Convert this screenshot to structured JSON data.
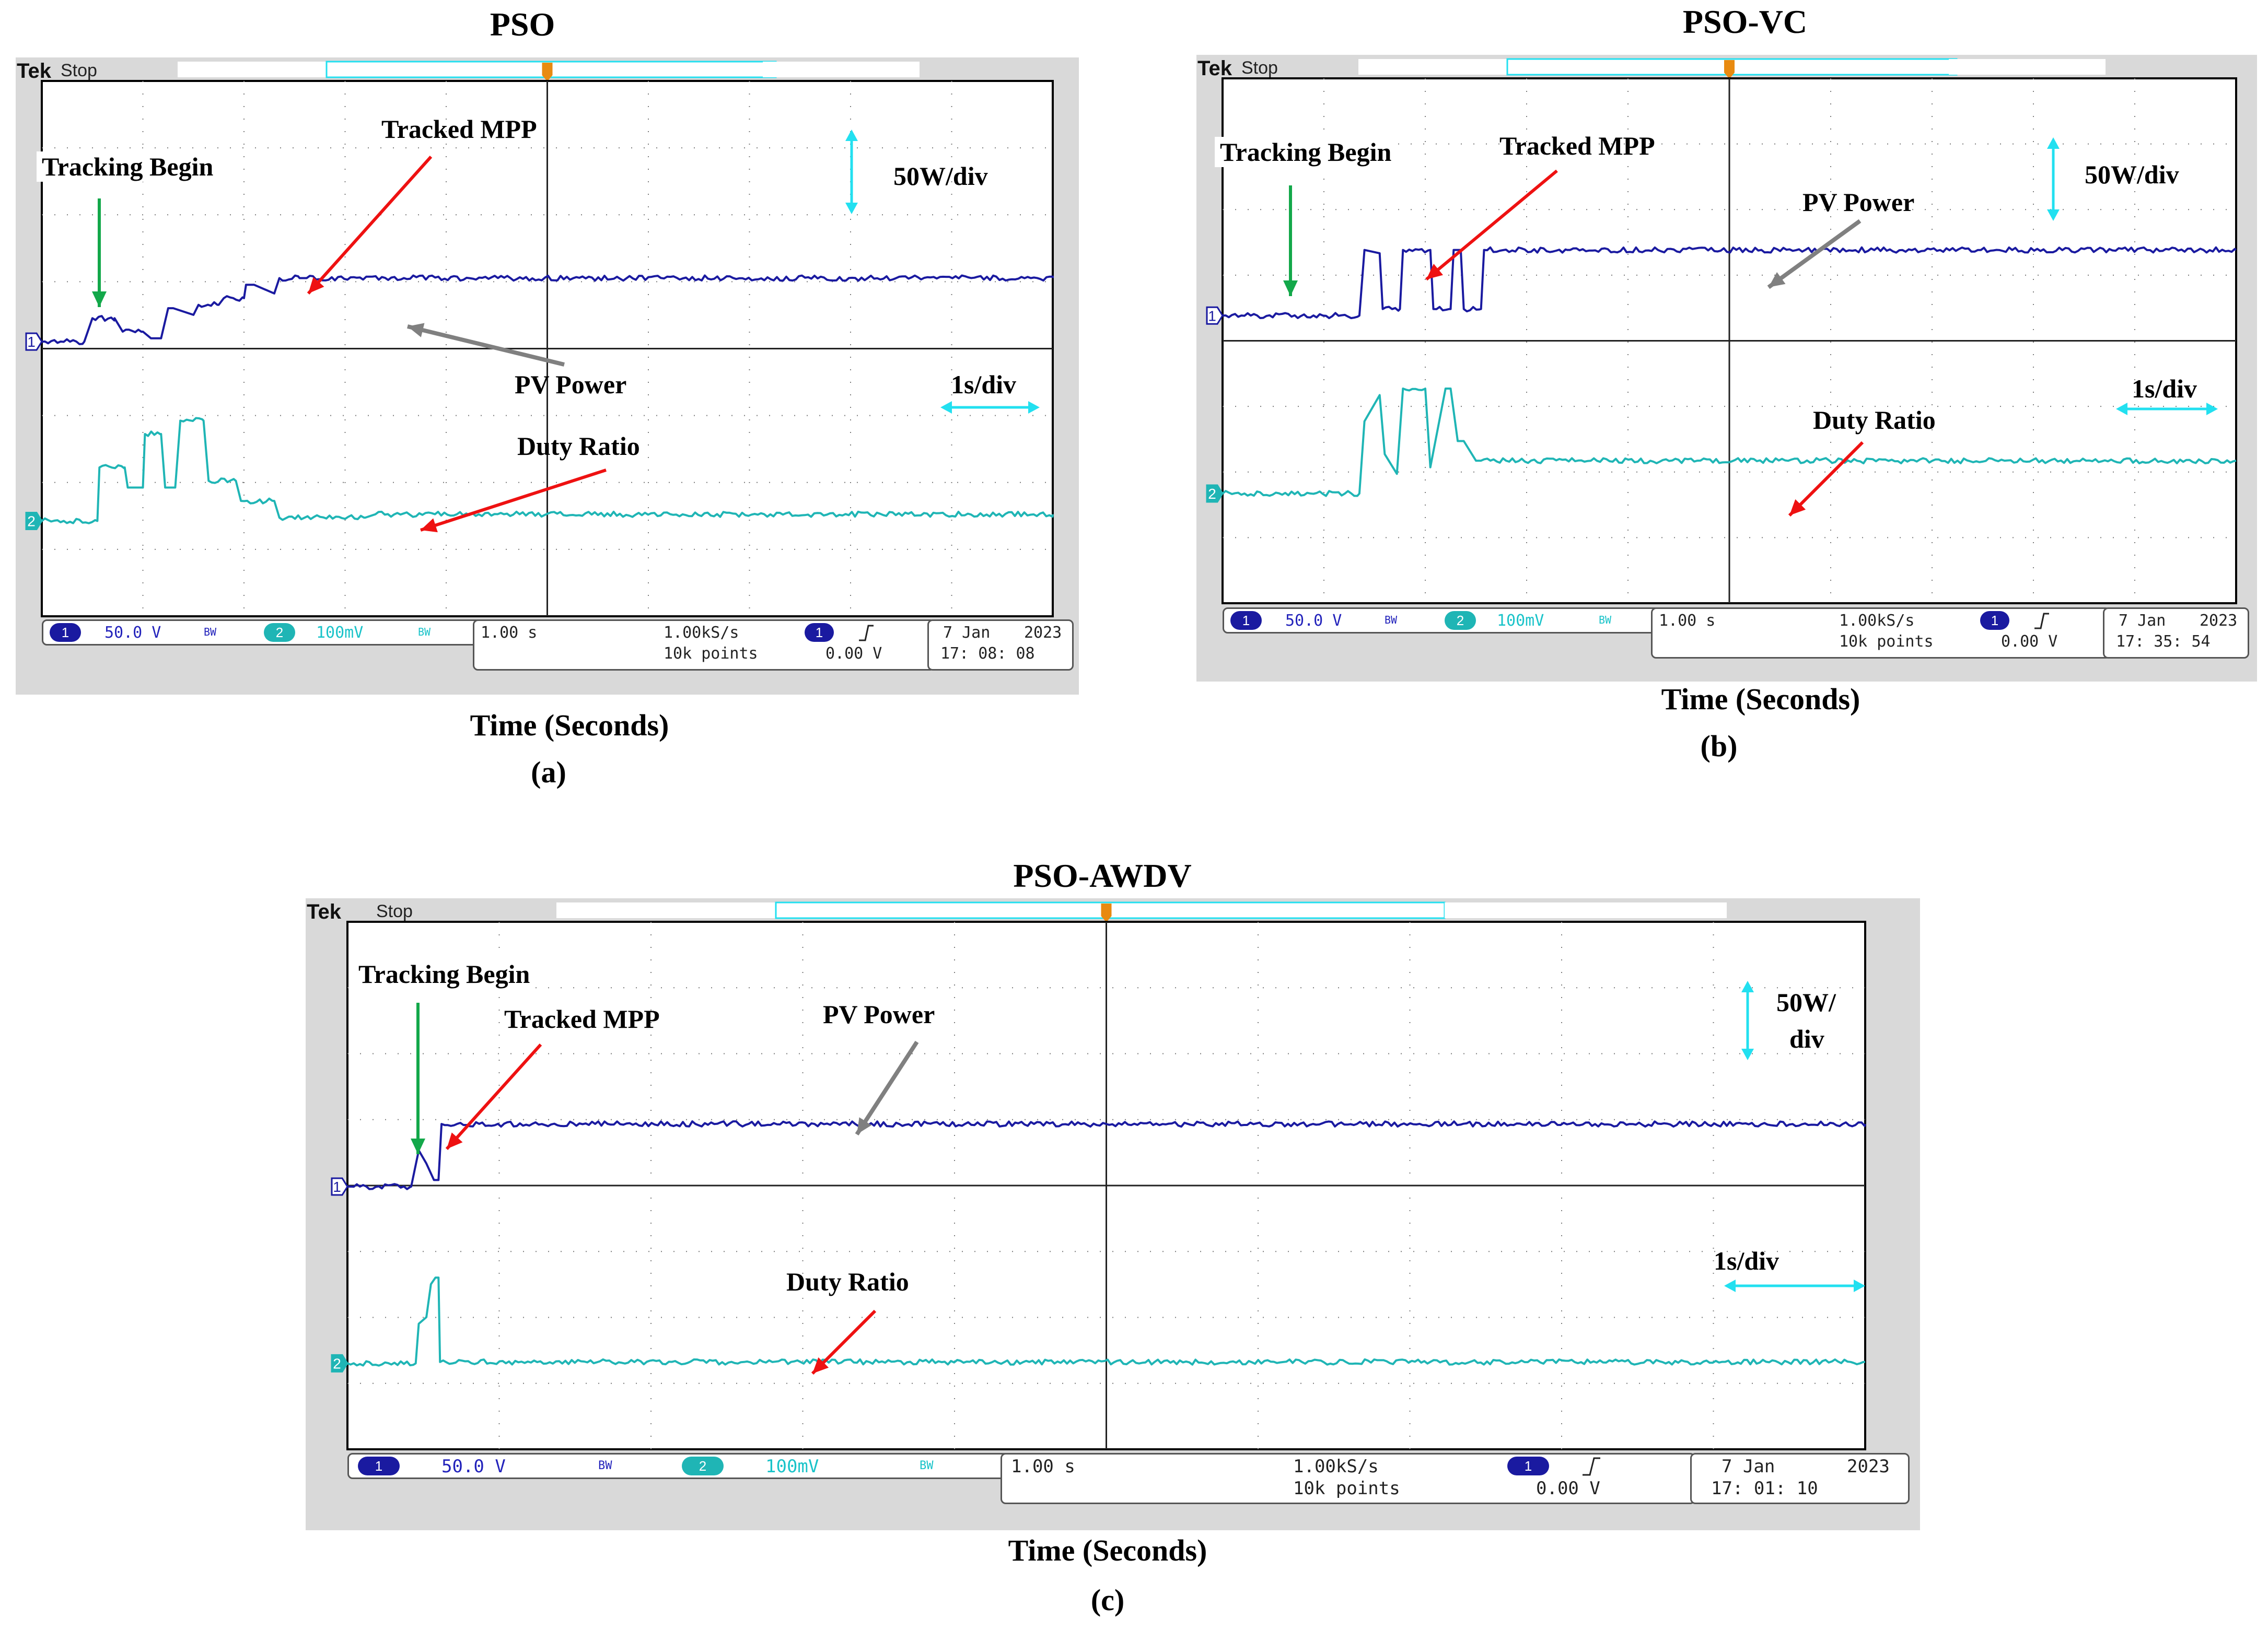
{
  "colors": {
    "ch1": "#1a1aa0",
    "ch2": "#1fb5b5",
    "grid": "#7a7a7a",
    "red_arrow": "#ee1111",
    "green_arrow": "#13a84a",
    "gray_arrow": "#808080",
    "cyan_marker": "#22e0f0",
    "orange_trigger": "#e88a10"
  },
  "chart_data": [
    {
      "type": "line",
      "panel_id": "a",
      "title": "PSO",
      "xlabel": "Time (Seconds)",
      "caption": "(a)",
      "x_unit": "s",
      "xlim": [
        0,
        10
      ],
      "ylim": [
        -4,
        4
      ],
      "scope_header": {
        "brand": "Tek",
        "status": "Stop"
      },
      "scale_labels": {
        "vertical": "50W/div",
        "horizontal": "1s/div"
      },
      "annotations": {
        "tracking_begin": "Tracking Begin",
        "tracked_mpp": "Tracked MPP",
        "pv_power": "PV Power",
        "duty_ratio": "Duty Ratio"
      },
      "readout": {
        "ch1_num": "1",
        "ch1_scale": "50.0 V",
        "ch2_num": "2",
        "ch2_scale": "100mV",
        "bw": "BW",
        "timebase": "1.00 s",
        "sample_rate": "1.00kS/s",
        "record": "10k points",
        "trig_ch": "1",
        "trig_level": "0.00 V",
        "date": "7 Jan",
        "year": "2023",
        "time": "17: 08: 08"
      },
      "series": [
        {
          "name": "PV Power",
          "channel": "1",
          "x": [
            0,
            0.42,
            0.5,
            0.72,
            0.8,
            1.0,
            1.08,
            1.18,
            1.25,
            1.3,
            1.5,
            1.55,
            1.75,
            1.8,
            2.0,
            2.02,
            2.1,
            2.3,
            2.35,
            2.55,
            2.62,
            10
          ],
          "y": [
            0,
            0,
            0.35,
            0.35,
            0.15,
            0.15,
            0.05,
            0.05,
            0.5,
            0.5,
            0.4,
            0.55,
            0.55,
            0.65,
            0.65,
            0.85,
            0.85,
            0.72,
            0.95,
            0.95,
            0.95,
            0.95
          ]
        },
        {
          "name": "Duty Ratio",
          "channel": "2",
          "x": [
            0,
            0.55,
            0.57,
            0.82,
            0.85,
            1.0,
            1.02,
            1.18,
            1.22,
            1.32,
            1.37,
            1.6,
            1.65,
            1.92,
            1.97,
            2.3,
            2.35,
            3.2,
            3.3,
            10
          ],
          "y": [
            0,
            0,
            0.8,
            0.8,
            0.5,
            0.5,
            1.3,
            1.3,
            0.5,
            0.5,
            1.5,
            1.5,
            0.6,
            0.6,
            0.3,
            0.3,
            0.05,
            0.05,
            0.1,
            0.1
          ]
        }
      ]
    },
    {
      "type": "line",
      "panel_id": "b",
      "title": "PSO-VC",
      "xlabel": "Time (Seconds)",
      "caption": "(b)",
      "x_unit": "s",
      "xlim": [
        0,
        10
      ],
      "ylim": [
        -4,
        4
      ],
      "scope_header": {
        "brand": "Tek",
        "status": "Stop"
      },
      "scale_labels": {
        "vertical": "50W/div",
        "horizontal": "1s/div"
      },
      "annotations": {
        "tracking_begin": "Tracking Begin",
        "tracked_mpp": "Tracked MPP",
        "pv_power": "PV Power",
        "duty_ratio": "Duty Ratio"
      },
      "readout": {
        "ch1_num": "1",
        "ch1_scale": "50.0 V",
        "ch2_num": "2",
        "ch2_scale": "100mV",
        "bw": "BW",
        "timebase": "1.00 s",
        "sample_rate": "1.00kS/s",
        "record": "10k points",
        "trig_ch": "1",
        "trig_level": "0.00 V",
        "date": "7 Jan",
        "year": "2023",
        "time": "17: 35: 54"
      },
      "series": [
        {
          "name": "PV Power",
          "channel": "1",
          "x": [
            0,
            1.35,
            1.4,
            1.55,
            1.58,
            1.75,
            1.78,
            2.05,
            2.08,
            2.25,
            2.28,
            2.35,
            2.38,
            2.55,
            2.58,
            3.4,
            3.43,
            10
          ],
          "y": [
            0,
            0,
            1.0,
            0.95,
            0.1,
            0.1,
            1.0,
            1.0,
            0.1,
            0.1,
            1.0,
            1.0,
            0.1,
            0.1,
            1.0,
            1.0,
            1.0,
            1.0
          ]
        },
        {
          "name": "Duty Ratio",
          "channel": "2",
          "x": [
            0,
            1.35,
            1.4,
            1.55,
            1.6,
            1.72,
            1.78,
            2.0,
            2.05,
            2.2,
            2.25,
            2.32,
            2.38,
            2.5,
            2.55,
            10
          ],
          "y": [
            0,
            0,
            1.1,
            1.5,
            0.6,
            0.3,
            1.6,
            1.6,
            0.4,
            1.6,
            1.6,
            0.8,
            0.8,
            0.5,
            0.5,
            0.5
          ]
        }
      ]
    },
    {
      "type": "line",
      "panel_id": "c",
      "title": "PSO-AWDV",
      "xlabel": "Time (Seconds)",
      "caption": "(c)",
      "x_unit": "s",
      "xlim": [
        0,
        10
      ],
      "ylim": [
        -4,
        4
      ],
      "scope_header": {
        "brand": "Tek",
        "status": "Stop"
      },
      "scale_labels": {
        "vertical_line1": "50W/",
        "vertical_line2": "div",
        "horizontal": "1s/div"
      },
      "annotations": {
        "tracking_begin": "Tracking Begin",
        "tracked_mpp": "Tracked MPP",
        "pv_power": "PV Power",
        "duty_ratio": "Duty Ratio"
      },
      "readout": {
        "ch1_num": "1",
        "ch1_scale": "50.0 V",
        "ch2_num": "2",
        "ch2_scale": "100mV",
        "bw": "BW",
        "timebase": "1.00 s",
        "sample_rate": "1.00kS/s",
        "record": "10k points",
        "trig_ch": "1",
        "trig_level": "0.00 V",
        "date": "7 Jan",
        "year": "2023",
        "time": "17: 01: 10"
      },
      "series": [
        {
          "name": "PV Power",
          "channel": "1",
          "x": [
            0,
            0.42,
            0.47,
            0.52,
            0.57,
            0.6,
            0.62,
            10
          ],
          "y": [
            0,
            0,
            0.55,
            0.35,
            0.1,
            0.1,
            0.95,
            0.95
          ]
        },
        {
          "name": "Duty Ratio",
          "channel": "2",
          "x": [
            0,
            0.45,
            0.47,
            0.52,
            0.55,
            0.58,
            0.6,
            0.61,
            10
          ],
          "y": [
            0,
            0,
            0.6,
            0.7,
            1.2,
            1.3,
            1.3,
            0.02,
            0.02
          ]
        }
      ]
    }
  ]
}
